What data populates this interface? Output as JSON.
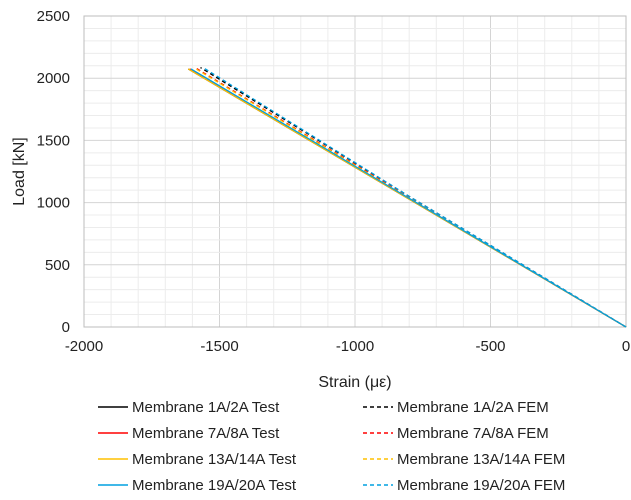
{
  "chart_data": {
    "type": "line",
    "title": "",
    "xlabel": "Strain (με)",
    "ylabel": "Load [kN]",
    "xlim": [
      -2000,
      0
    ],
    "ylim": [
      0,
      2500
    ],
    "x_ticks": [
      -2000,
      -1500,
      -1000,
      -500,
      0
    ],
    "y_ticks": [
      0,
      500,
      1000,
      1500,
      2000,
      2500
    ],
    "x_tick_labels": [
      "-2000",
      "-1500",
      "-1000",
      "-500",
      "0"
    ],
    "y_tick_labels": [
      "0",
      "500",
      "1000",
      "1500",
      "2000",
      "2500"
    ],
    "grid": true,
    "legend_position": "bottom",
    "series": [
      {
        "name": "Membrane 1A/2A Test",
        "color": "#000000",
        "dash": "solid",
        "points": [
          [
            0,
            0
          ],
          [
            -1615,
            2075
          ]
        ]
      },
      {
        "name": "Membrane 1A/2A FEM",
        "color": "#000000",
        "dash": "dashed",
        "points": [
          [
            0,
            0
          ],
          [
            -800,
            1050
          ],
          [
            -1570,
            2085
          ]
        ]
      },
      {
        "name": "Membrane 7A/8A Test",
        "color": "#ff0000",
        "dash": "solid",
        "points": [
          [
            0,
            0
          ],
          [
            -1610,
            2075
          ]
        ]
      },
      {
        "name": "Membrane 7A/8A FEM",
        "color": "#ff0000",
        "dash": "dashed",
        "points": [
          [
            0,
            0
          ],
          [
            -800,
            1040
          ],
          [
            -1590,
            2085
          ]
        ]
      },
      {
        "name": "Membrane 13A/14A Test",
        "color": "#ffc000",
        "dash": "solid",
        "points": [
          [
            0,
            0
          ],
          [
            -1615,
            2075
          ]
        ]
      },
      {
        "name": "Membrane 13A/14A FEM",
        "color": "#ffc000",
        "dash": "dashed",
        "points": [
          [
            0,
            0
          ],
          [
            -800,
            1035
          ],
          [
            -1595,
            2085
          ]
        ]
      },
      {
        "name": "Membrane 19A/20A Test",
        "color": "#00a0e0",
        "dash": "solid",
        "points": [
          [
            0,
            0
          ],
          [
            -1605,
            2075
          ]
        ]
      },
      {
        "name": "Membrane 19A/20A FEM",
        "color": "#00a0e0",
        "dash": "dashed",
        "points": [
          [
            0,
            0
          ],
          [
            -800,
            1050
          ],
          [
            -1560,
            2085
          ]
        ]
      }
    ]
  }
}
